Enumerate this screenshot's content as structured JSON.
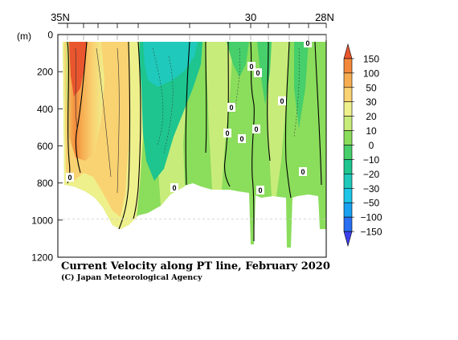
{
  "chart_data": {
    "type": "heatmap",
    "title": "Current Velocity along PT line, February 2020",
    "credit": "(C) Japan Meteorological Agency",
    "x_axis": {
      "direction": "north-to-south",
      "range": [
        "35N",
        "28N"
      ],
      "tick_labels": [
        "35N",
        "30",
        "28N"
      ]
    },
    "y_axis": {
      "label": "(m)",
      "range": [
        0,
        1200
      ],
      "inverted": true,
      "tick_values": [
        0,
        200,
        400,
        600,
        800,
        1000,
        1200
      ],
      "tick_labels": [
        "0",
        "200",
        "400",
        "600",
        "800",
        "1000",
        "1200"
      ]
    },
    "colorbar": {
      "levels": [
        "150",
        "100",
        "50",
        "30",
        "20",
        "10",
        "0",
        "−10",
        "−20",
        "−30",
        "−50",
        "−100",
        "−150"
      ],
      "colors": [
        "#e9552d",
        "#f3883b",
        "#f6ad51",
        "#f9d272",
        "#eef08c",
        "#c8ec7a",
        "#8bdd5c",
        "#46cf6a",
        "#1ec58e",
        "#1fc9bb",
        "#1fc6e8",
        "#1aa1ef",
        "#2a6ff1",
        "#3d3fee"
      ]
    },
    "contour_labels": [
      "0",
      "0",
      "0",
      "0",
      "0",
      "0",
      "0",
      "0",
      "0",
      "0",
      "0",
      "0"
    ]
  }
}
